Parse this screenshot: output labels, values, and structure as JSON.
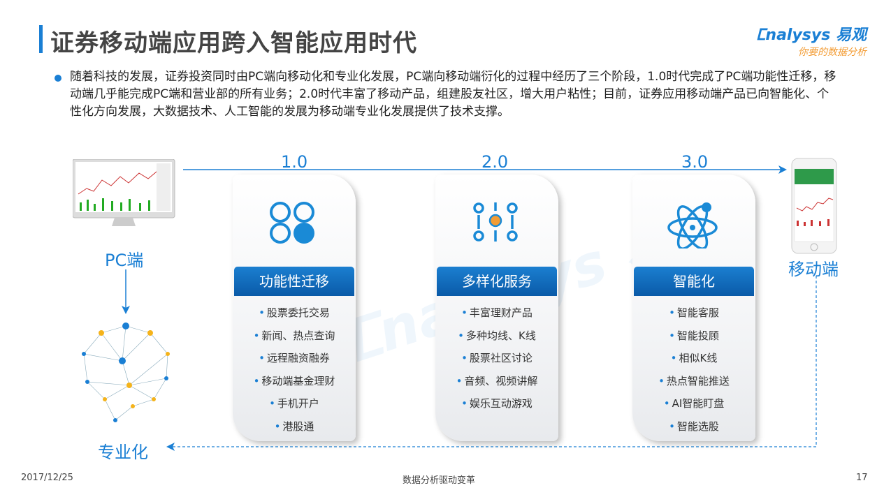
{
  "header": {
    "title": "证券移动端应用跨入智能应用时代",
    "logo_text": "nalysys 易观",
    "logo_slogan": "你要的数据分析"
  },
  "intro": "随着科技的发展，证券投资同时由PC端向移动化和专业化发展，PC端向移动端衍化的过程中经历了三个阶段，1.0时代完成了PC端功能性迁移，移动端几乎能完成PC端和营业部的所有业务；2.0时代丰富了移动产品，组建股友社区，增大用户粘性；目前，证券应用移动端产品已向智能化、个性化方向发展，大数据技术、人工智能的发展为移动端专业化发展提供了技术支撑。",
  "nodes": {
    "pc": "PC端",
    "mobile": "移动端",
    "pro": "专业化"
  },
  "stages": [
    {
      "version": "1.0",
      "title": "功能性迁移",
      "icon": "four-circles-icon",
      "items": [
        "股票委托交易",
        "新闻、热点查询",
        "远程融资融券",
        "移动端基金理财",
        "手机开户",
        "港股通"
      ]
    },
    {
      "version": "2.0",
      "title": "多样化服务",
      "icon": "sliders-icon",
      "items": [
        "丰富理财产品",
        "多种均线、K线",
        "股票社区讨论",
        "音频、视频讲解",
        "娱乐互动游戏"
      ]
    },
    {
      "version": "3.0",
      "title": "智能化",
      "icon": "atom-icon",
      "items": [
        "智能客服",
        "智能投顾",
        "相似K线",
        "热点智能推送",
        "AI智能盯盘",
        "智能选股"
      ]
    }
  ],
  "colors": {
    "accent": "#1a7fd4",
    "header_blue": "#0a5aa8",
    "orange": "#f39c34"
  },
  "footer": {
    "date": "2017/12/25",
    "center": "数据分析驱动变革",
    "page": "17"
  }
}
